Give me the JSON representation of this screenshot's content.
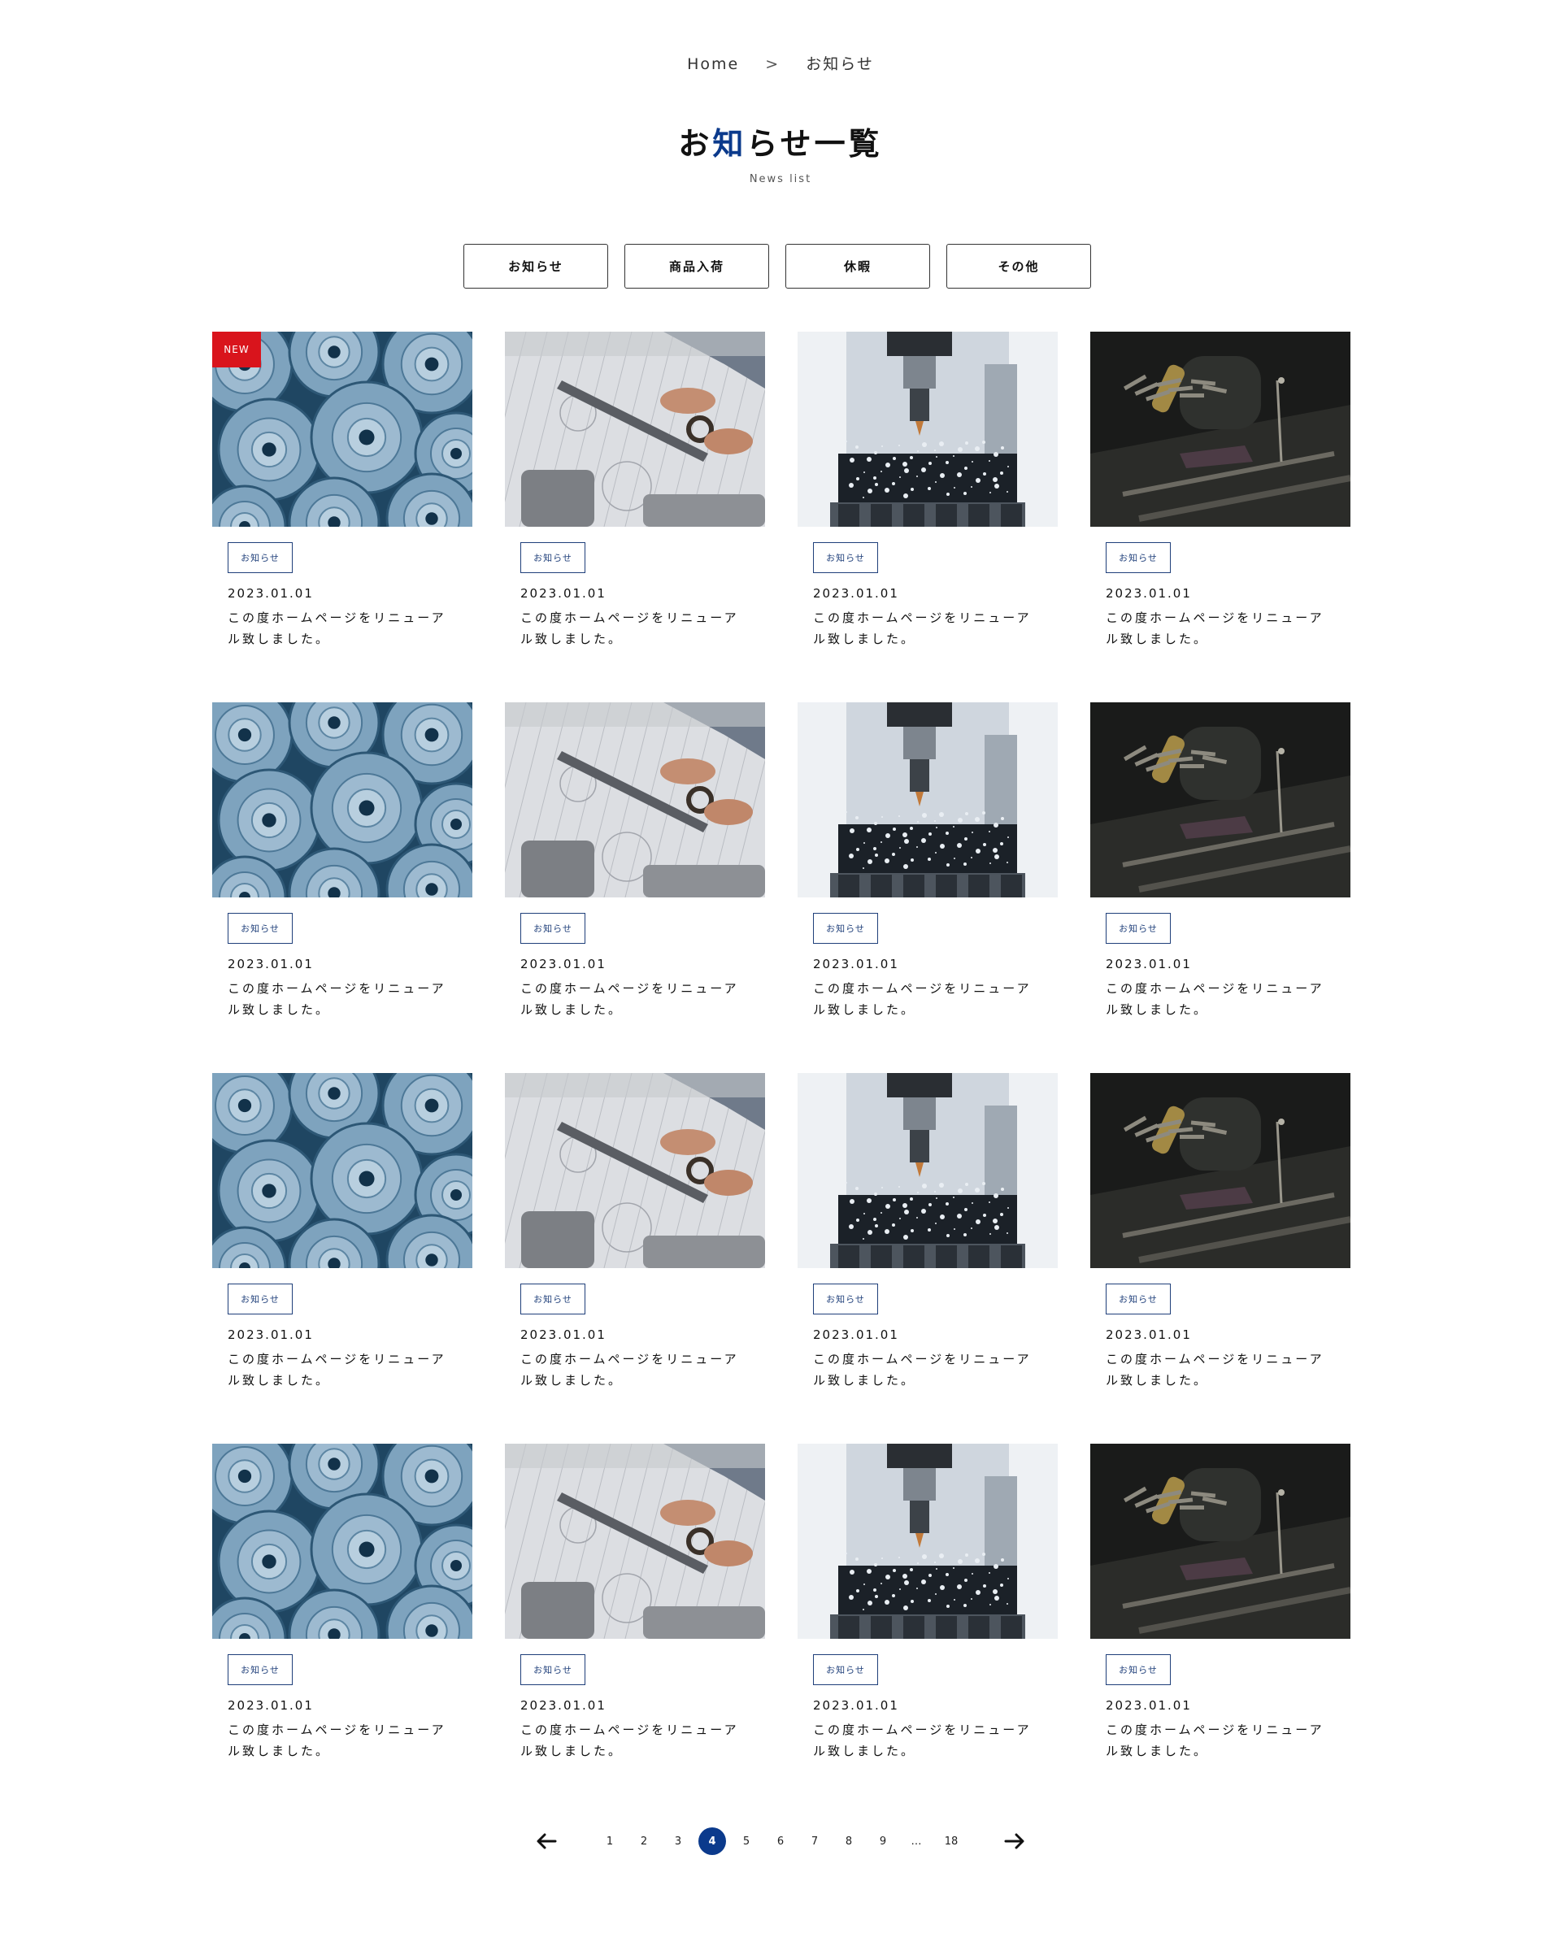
{
  "breadcrumb": {
    "home": "Home",
    "separator": ">",
    "current": "お知らせ"
  },
  "header": {
    "title_pre": "お",
    "title_accent": "知",
    "title_post": "らせ一覧",
    "subtitle": "News list",
    "accent_color": "#0b3a8c"
  },
  "filters": [
    {
      "label": "お知らせ"
    },
    {
      "label": "商品入荷"
    },
    {
      "label": "休暇"
    },
    {
      "label": "その他"
    }
  ],
  "badge_new": "NEW",
  "news": [
    {
      "image": "metal-parts",
      "tag": "お知らせ",
      "date": "2023.01.01",
      "title": "この度ホームページをリニューアル致しました。",
      "is_new": true
    },
    {
      "image": "caliper-drawing",
      "tag": "お知らせ",
      "date": "2023.01.01",
      "title": "この度ホームページをリニューアル致しました。",
      "is_new": false
    },
    {
      "image": "cnc-milling",
      "tag": "お知らせ",
      "date": "2023.01.01",
      "title": "この度ホームページをリニューアル致しました。",
      "is_new": false
    },
    {
      "image": "workshop-tools",
      "tag": "お知らせ",
      "date": "2023.01.01",
      "title": "この度ホームページをリニューアル致しました。",
      "is_new": false
    },
    {
      "image": "metal-parts",
      "tag": "お知らせ",
      "date": "2023.01.01",
      "title": "この度ホームページをリニューアル致しました。",
      "is_new": false
    },
    {
      "image": "caliper-drawing",
      "tag": "お知らせ",
      "date": "2023.01.01",
      "title": "この度ホームページをリニューアル致しました。",
      "is_new": false
    },
    {
      "image": "cnc-milling",
      "tag": "お知らせ",
      "date": "2023.01.01",
      "title": "この度ホームページをリニューアル致しました。",
      "is_new": false
    },
    {
      "image": "workshop-tools",
      "tag": "お知らせ",
      "date": "2023.01.01",
      "title": "この度ホームページをリニューアル致しました。",
      "is_new": false
    },
    {
      "image": "metal-parts",
      "tag": "お知らせ",
      "date": "2023.01.01",
      "title": "この度ホームページをリニューアル致しました。",
      "is_new": false
    },
    {
      "image": "caliper-drawing",
      "tag": "お知らせ",
      "date": "2023.01.01",
      "title": "この度ホームページをリニューアル致しました。",
      "is_new": false
    },
    {
      "image": "cnc-milling",
      "tag": "お知らせ",
      "date": "2023.01.01",
      "title": "この度ホームページをリニューアル致しました。",
      "is_new": false
    },
    {
      "image": "workshop-tools",
      "tag": "お知らせ",
      "date": "2023.01.01",
      "title": "この度ホームページをリニューアル致しました。",
      "is_new": false
    },
    {
      "image": "metal-parts",
      "tag": "お知らせ",
      "date": "2023.01.01",
      "title": "この度ホームページをリニューアル致しました。",
      "is_new": false
    },
    {
      "image": "caliper-drawing",
      "tag": "お知らせ",
      "date": "2023.01.01",
      "title": "この度ホームページをリニューアル致しました。",
      "is_new": false
    },
    {
      "image": "cnc-milling",
      "tag": "お知らせ",
      "date": "2023.01.01",
      "title": "この度ホームページをリニューアル致しました。",
      "is_new": false
    },
    {
      "image": "workshop-tools",
      "tag": "お知らせ",
      "date": "2023.01.01",
      "title": "この度ホームページをリニューアル致しました。",
      "is_new": false
    }
  ],
  "pagination": {
    "prev_icon": "arrow-left-icon",
    "next_icon": "arrow-right-icon",
    "pages": [
      "1",
      "2",
      "3",
      "4",
      "5",
      "6",
      "7",
      "8",
      "9",
      "…",
      "18"
    ],
    "current": "4"
  }
}
